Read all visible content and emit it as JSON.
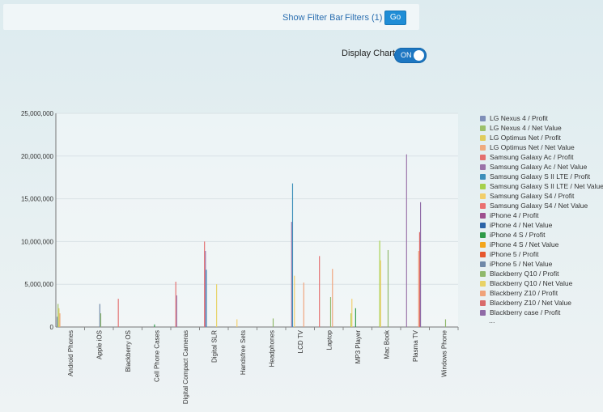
{
  "toolbar": {
    "show_filter_bar": "Show Filter Bar",
    "filters": "Filters (1)",
    "go": "Go"
  },
  "display_chart": {
    "label": "Display Chart",
    "toggle_text": "ON"
  },
  "legend_more": "...",
  "chart_data": {
    "type": "bar",
    "ylim": [
      0,
      25000000
    ],
    "yticks": [
      0,
      5000000,
      10000000,
      15000000,
      20000000,
      25000000
    ],
    "ytick_labels": [
      "0",
      "5,000,000",
      "10,000,000",
      "15,000,000",
      "20,000,000",
      "25,000,000"
    ],
    "categories": [
      "Android Phones",
      "Apple iOS",
      "Blackberry OS",
      "Cell Phone Cases",
      "Digital Compact Cameras",
      "Digital SLR",
      "Handsfree Sets",
      "Headphones",
      "LCD TV",
      "Laptop",
      "MP3 Player",
      "Mac Book",
      "Plasma TV",
      "Windows Phone"
    ],
    "series": [
      {
        "name": "LG Nexus 4 / Profit",
        "color": "#7f8fb8",
        "values": [
          1200000,
          0,
          0,
          0,
          0,
          0,
          0,
          0,
          0,
          0,
          0,
          0,
          0,
          0
        ]
      },
      {
        "name": "LG Nexus 4 / Net Value",
        "color": "#9cc06a",
        "values": [
          2700000,
          0,
          0,
          0,
          0,
          0,
          0,
          0,
          0,
          0,
          0,
          0,
          0,
          0
        ]
      },
      {
        "name": "LG Optimus Net / Profit",
        "color": "#e0cc5c",
        "values": [
          2200000,
          0,
          0,
          0,
          0,
          0,
          0,
          0,
          0,
          0,
          0,
          0,
          0,
          0
        ]
      },
      {
        "name": "LG Optimus Net / Net Value",
        "color": "#efaa7e",
        "values": [
          1600000,
          0,
          0,
          0,
          0,
          0,
          0,
          0,
          0,
          0,
          0,
          0,
          0,
          0
        ]
      },
      {
        "name": "Samsung Galaxy Ac / Profit",
        "color": "#e46e6e",
        "values": [
          0,
          0,
          3300000,
          0,
          5300000,
          10000000,
          0,
          0,
          0,
          8300000,
          0,
          0,
          0,
          0
        ]
      },
      {
        "name": "Samsung Galaxy Ac / Net Value",
        "color": "#9a72a8",
        "values": [
          0,
          0,
          0,
          0,
          3700000,
          8900000,
          0,
          0,
          12300000,
          0,
          0,
          0,
          20200000,
          0
        ]
      },
      {
        "name": "Samsung Galaxy S II LTE / Profit",
        "color": "#3d8fba",
        "values": [
          0,
          0,
          0,
          0,
          0,
          6700000,
          0,
          0,
          16800000,
          0,
          0,
          0,
          0,
          0
        ]
      },
      {
        "name": "Samsung Galaxy S II LTE / Net Value",
        "color": "#a6d14a",
        "values": [
          0,
          0,
          0,
          0,
          0,
          0,
          0,
          0,
          0,
          0,
          1600000,
          10100000,
          0,
          0
        ]
      },
      {
        "name": "Samsung Galaxy S4 / Profit",
        "color": "#f2ce6a",
        "values": [
          0,
          0,
          0,
          0,
          0,
          0,
          900000,
          0,
          6000000,
          0,
          3300000,
          7800000,
          0,
          0
        ]
      },
      {
        "name": "Samsung Galaxy S4 / Net Value",
        "color": "#ea7070",
        "values": [
          0,
          0,
          0,
          0,
          0,
          0,
          0,
          0,
          0,
          0,
          0,
          0,
          0,
          0
        ]
      },
      {
        "name": "iPhone 4 / Profit",
        "color": "#9e4f8e",
        "values": [
          0,
          0,
          0,
          0,
          0,
          0,
          0,
          0,
          0,
          0,
          0,
          0,
          0,
          0
        ]
      },
      {
        "name": "iPhone 4 / Net Value",
        "color": "#2c64a8",
        "values": [
          0,
          0,
          0,
          0,
          0,
          0,
          0,
          0,
          0,
          0,
          0,
          0,
          0,
          0
        ]
      },
      {
        "name": "iPhone 4 S / Profit",
        "color": "#2e9a48",
        "values": [
          0,
          0,
          0,
          300000,
          0,
          0,
          0,
          0,
          0,
          0,
          2200000,
          0,
          0,
          0
        ]
      },
      {
        "name": "iPhone 4 S / Net Value",
        "color": "#f3a51c",
        "values": [
          0,
          0,
          0,
          0,
          0,
          0,
          0,
          0,
          0,
          0,
          0,
          0,
          0,
          0
        ]
      },
      {
        "name": "iPhone 5 / Profit",
        "color": "#e6572e",
        "values": [
          0,
          0,
          0,
          0,
          0,
          0,
          0,
          0,
          0,
          0,
          0,
          0,
          0,
          0
        ]
      },
      {
        "name": "iPhone 5 / Net Value",
        "color": "#6f88a8",
        "values": [
          0,
          2700000,
          0,
          0,
          0,
          0,
          0,
          0,
          0,
          0,
          0,
          0,
          0,
          0
        ]
      },
      {
        "name": "Blackberry Q10 / Profit",
        "color": "#8fb86a",
        "values": [
          0,
          1600000,
          0,
          0,
          0,
          0,
          0,
          1000000,
          0,
          3500000,
          0,
          9000000,
          0,
          900000
        ]
      },
      {
        "name": "Blackberry Q10 / Net Value",
        "color": "#e8d266",
        "values": [
          0,
          0,
          0,
          0,
          0,
          5000000,
          0,
          0,
          0,
          0,
          0,
          0,
          0,
          0
        ]
      },
      {
        "name": "Blackberry Z10 / Profit",
        "color": "#f0a27a",
        "values": [
          0,
          0,
          0,
          0,
          0,
          0,
          0,
          0,
          5200000,
          6800000,
          0,
          0,
          8900000,
          0
        ]
      },
      {
        "name": "Blackberry Z10 / Net Value",
        "color": "#d96a6a",
        "values": [
          0,
          0,
          0,
          0,
          0,
          0,
          0,
          0,
          0,
          0,
          0,
          0,
          11100000,
          0
        ]
      },
      {
        "name": "Blackberry case / Profit",
        "color": "#8f6aa6",
        "values": [
          0,
          0,
          0,
          0,
          0,
          0,
          0,
          0,
          0,
          0,
          0,
          0,
          14600000,
          0
        ]
      }
    ]
  }
}
